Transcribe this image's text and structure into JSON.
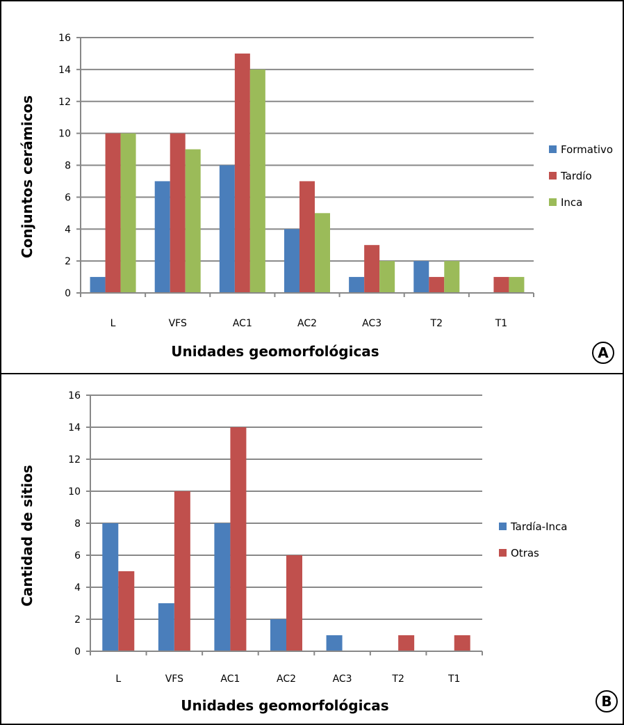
{
  "chart_data": [
    {
      "type": "bar",
      "panel_label": "A",
      "categories": [
        "L",
        "VFS",
        "AC1",
        "AC2",
        "AC3",
        "T2",
        "T1"
      ],
      "series": [
        {
          "name": "Formativo",
          "color": "#4a7ebb",
          "values": [
            1,
            7,
            8,
            4,
            1,
            2,
            0
          ]
        },
        {
          "name": "Tardío",
          "color": "#c0504d",
          "values": [
            10,
            10,
            15,
            7,
            3,
            1,
            1
          ]
        },
        {
          "name": "Inca",
          "color": "#9bbb59",
          "values": [
            10,
            9,
            14,
            5,
            2,
            2,
            1
          ]
        }
      ],
      "title": "",
      "xlabel": "Unidades geomorfológicas",
      "ylabel": "Conjuntos cerámicos",
      "ylim": [
        0,
        16
      ],
      "yticks": [
        "0",
        "2",
        "4",
        "6",
        "8",
        "10",
        "12",
        "14",
        "16"
      ],
      "grid": true,
      "legend_position": "right"
    },
    {
      "type": "bar",
      "panel_label": "B",
      "categories": [
        "L",
        "VFS",
        "AC1",
        "AC2",
        "AC3",
        "T2",
        "T1"
      ],
      "series": [
        {
          "name": "Tardía-Inca",
          "color": "#4a7ebb",
          "values": [
            8,
            3,
            8,
            2,
            1,
            0,
            0
          ]
        },
        {
          "name": "Otras",
          "color": "#c0504d",
          "values": [
            5,
            10,
            14,
            6,
            0,
            1,
            1
          ]
        }
      ],
      "title": "",
      "xlabel": "Unidades geomorfológicas",
      "ylabel": "Cantidad de sitios",
      "ylim": [
        0,
        16
      ],
      "yticks": [
        "0",
        "2",
        "4",
        "6",
        "8",
        "10",
        "12",
        "14",
        "16"
      ],
      "grid": true,
      "legend_position": "right"
    }
  ]
}
